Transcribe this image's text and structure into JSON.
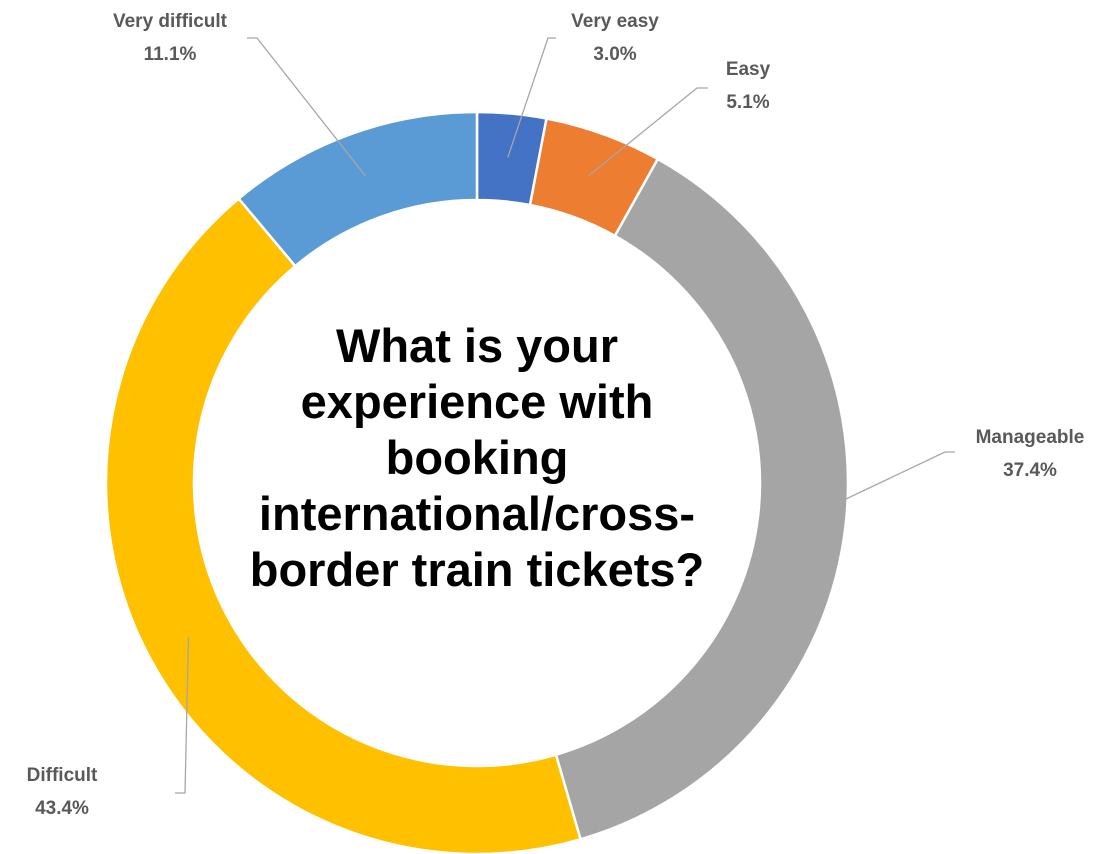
{
  "chart_data": {
    "type": "donut",
    "title": "What is your experience with booking international/cross-border train tickets?",
    "categories": [
      "Very easy",
      "Easy",
      "Manageable",
      "Difficult",
      "Very difficult"
    ],
    "values": [
      3.0,
      5.1,
      37.4,
      43.4,
      11.1
    ],
    "value_labels": [
      "3.0%",
      "5.1%",
      "37.4%",
      "43.4%",
      "11.1%"
    ],
    "colors": [
      "#4472c4",
      "#ed7d31",
      "#a5a5a5",
      "#ffc000",
      "#5b9bd5"
    ]
  }
}
